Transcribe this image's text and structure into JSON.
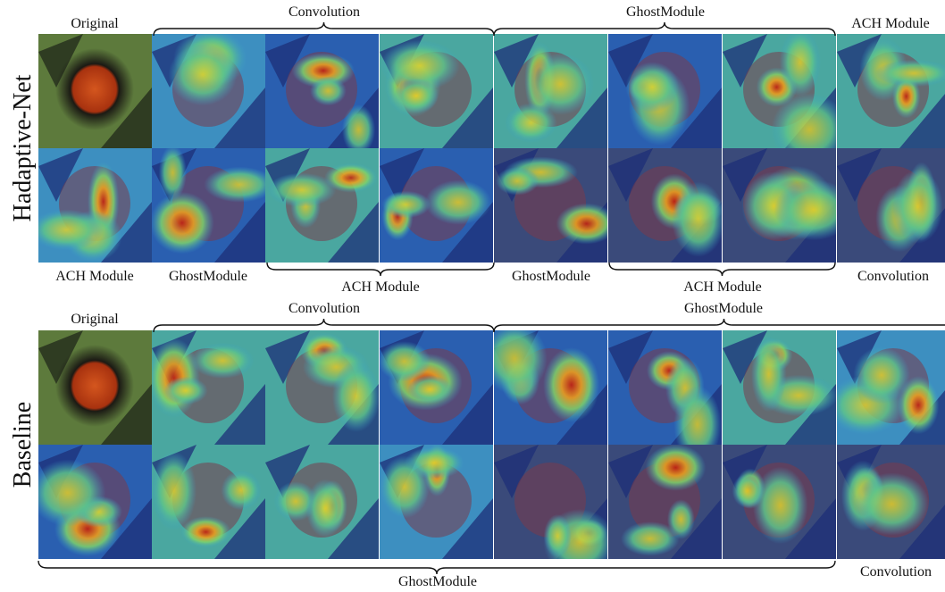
{
  "row_groups": [
    {
      "name": "Hadaptive-Net",
      "header": [
        "Original",
        "Convolution",
        "GhostModule",
        "ACH Module"
      ],
      "footer": [
        "ACH Module",
        "GhostModule",
        "ACH Module",
        "GhostModule",
        "ACH Module",
        "Convolution"
      ]
    },
    {
      "name": "Baseline",
      "header": [
        "Original",
        "Convolution",
        "GhostModule"
      ],
      "footer": [
        "GhostModule",
        "Convolution"
      ]
    }
  ]
}
